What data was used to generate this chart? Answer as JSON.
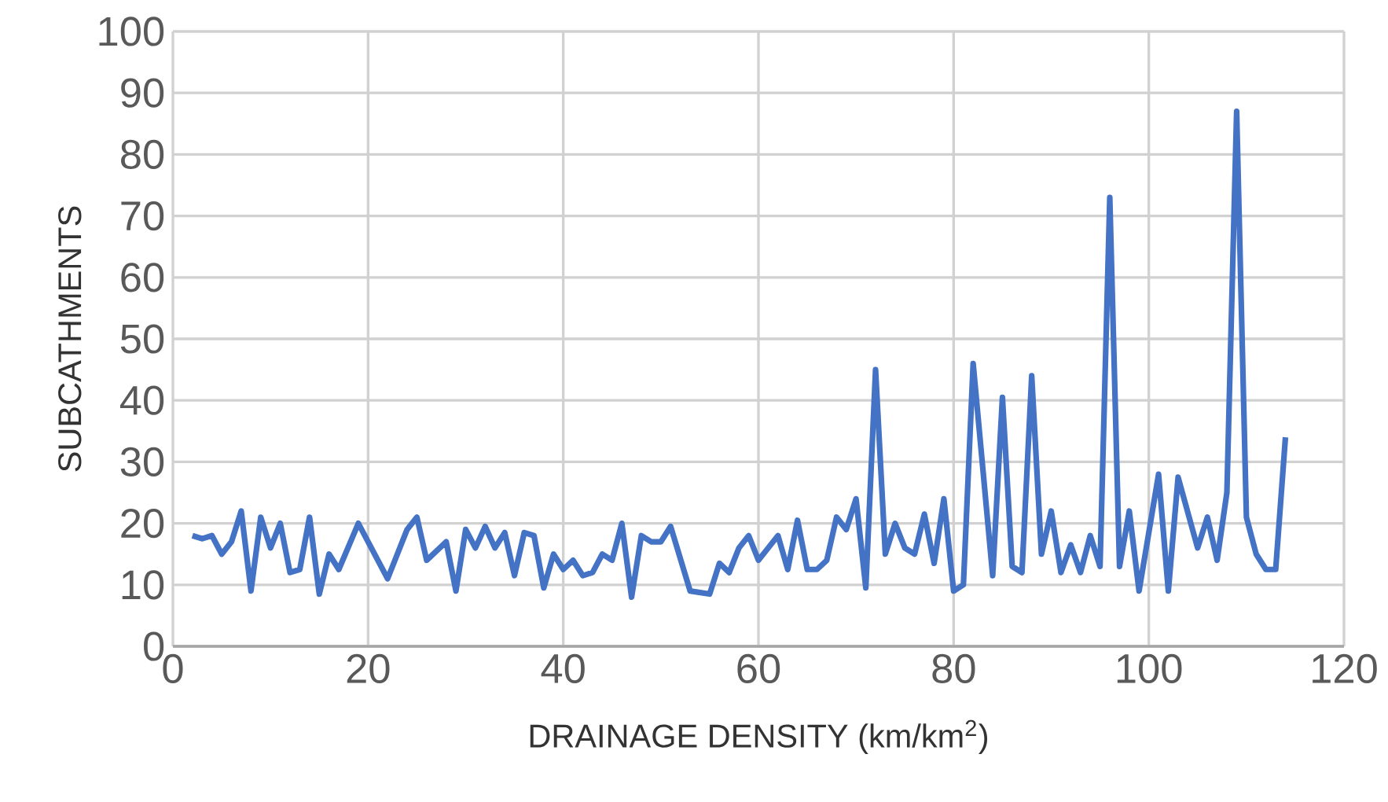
{
  "chart_data": {
    "type": "line",
    "xlabel": "DRAINAGE DENSITY (km/km$^{2}$)",
    "ylabel": "SUBCATHMENTS",
    "color": "#4472c4",
    "x": [
      2,
      3,
      4,
      5,
      6,
      7,
      8,
      9,
      10,
      11,
      12,
      13,
      14,
      15,
      16,
      17,
      19,
      22,
      24,
      25,
      26,
      28,
      29,
      30,
      31,
      32,
      33,
      34,
      35,
      36,
      37,
      38,
      39,
      40,
      41,
      42,
      43,
      44,
      45,
      46,
      47,
      48,
      49,
      50,
      51,
      53,
      55,
      56,
      57,
      58,
      59,
      60,
      61,
      62,
      63,
      64,
      65,
      66,
      67,
      68,
      69,
      70,
      71,
      72,
      73,
      74,
      75,
      76,
      77,
      78,
      79,
      80,
      81,
      82,
      84,
      85,
      86,
      87,
      88,
      89,
      90,
      91,
      92,
      93,
      94,
      95,
      96,
      97,
      98,
      99,
      101,
      102,
      103,
      105,
      106,
      107,
      108,
      109,
      110,
      111,
      112,
      113,
      114
    ],
    "values": [
      18,
      17.5,
      18,
      15,
      17,
      22,
      9,
      21,
      16,
      20,
      12,
      12.5,
      21,
      8.5,
      15,
      12.5,
      20,
      11,
      19,
      21,
      14,
      17,
      9,
      19,
      16,
      19.5,
      16,
      18.5,
      11.5,
      18.5,
      18,
      9.5,
      15,
      12.5,
      14,
      11.5,
      12,
      15,
      14,
      20,
      8,
      18,
      17,
      17,
      19.5,
      9,
      8.5,
      13.5,
      12,
      16,
      18,
      14,
      16,
      18,
      12.5,
      20.5,
      12.5,
      12.5,
      14,
      21,
      19,
      24,
      9.5,
      45,
      15,
      20,
      16,
      15,
      21.5,
      13.5,
      24,
      9,
      10,
      46,
      11.5,
      40.5,
      13,
      12,
      44,
      15,
      22,
      12,
      16.5,
      12,
      18,
      13,
      73,
      13,
      22,
      9,
      28,
      9,
      27.5,
      16,
      21,
      14,
      25,
      87,
      21,
      15,
      12.5,
      12.5,
      34
    ],
    "xlim": [
      0,
      120
    ],
    "ylim": [
      0,
      100
    ],
    "xticks": [
      0,
      20,
      40,
      60,
      80,
      100,
      120
    ],
    "yticks": [
      0,
      10,
      20,
      30,
      40,
      50,
      60,
      70,
      80,
      90,
      100
    ],
    "grid": true,
    "line_style": "solid",
    "marker": "none"
  }
}
